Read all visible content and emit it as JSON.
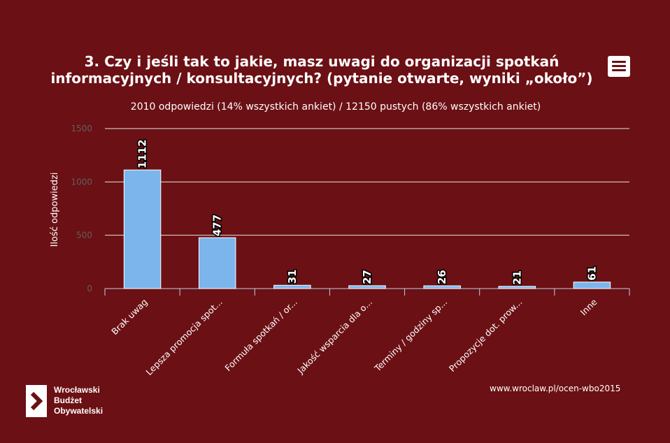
{
  "chart_data": {
    "type": "bar",
    "title_line1": "3. Czy i jeśli tak to jakie, masz uwagi do organizacji spotkań",
    "title_line2": "informacyjnych / konsultacyjnych? (pytanie otwarte, wyniki „około”)",
    "subtitle": "2010 odpowiedzi (14% wszystkich ankiet) / 12150 pustych (86% wszystkich ankiet)",
    "ylabel": "Ilość odpowiedzi",
    "xlabel": "",
    "ylim": [
      0,
      1500
    ],
    "yticks": [
      0,
      500,
      1000,
      1500
    ],
    "grid": true,
    "legend": "none",
    "categories": [
      "Brak uwag",
      "Lepsza promocja spot...",
      "Formuła spotkań / or...",
      "Jakość wsparcia dla o...",
      "Terminy / godziny sp...",
      "Propozycje dot. prow...",
      "Inne"
    ],
    "values": [
      1112,
      477,
      31,
      27,
      26,
      21,
      61
    ],
    "bar_color": "#7cb5ec",
    "background_color": "#6b1014"
  },
  "logo": {
    "line1": "Wrocławski",
    "line2": "Budżet",
    "line3": "Obywatelski"
  },
  "source": "www.wroclaw.pl/ocen-wbo2015",
  "menu_icon": "hamburger-menu-icon"
}
